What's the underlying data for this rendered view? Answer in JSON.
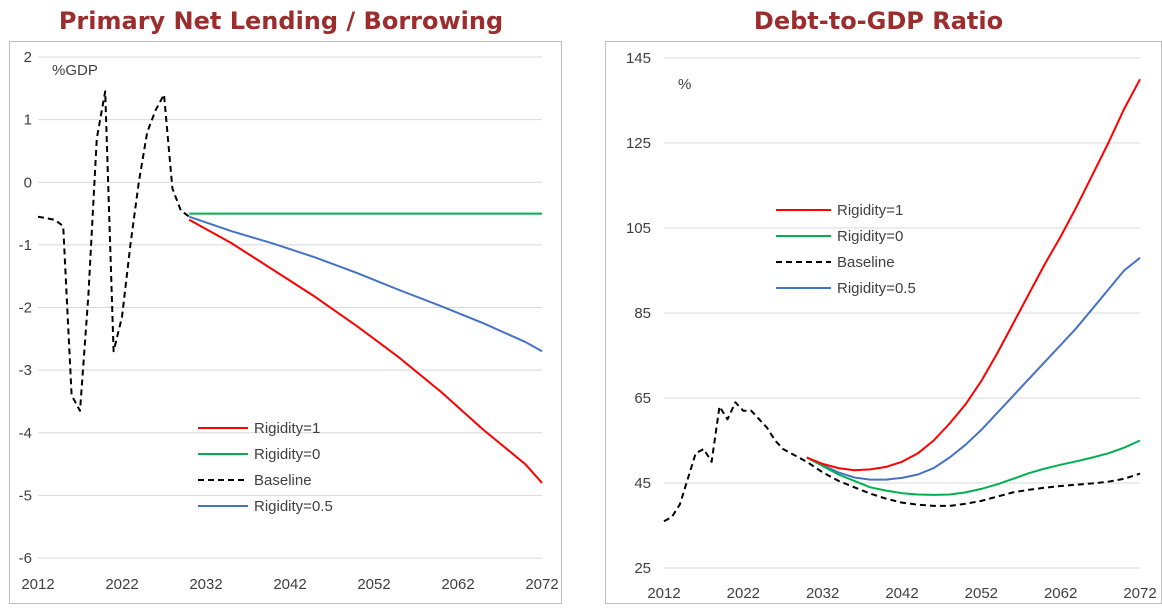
{
  "chart_data": [
    {
      "type": "line",
      "title": "Primary Net Lending / Borrowing",
      "ylabel": "%GDP",
      "xlim": [
        2012,
        2072
      ],
      "ylim": [
        -6,
        2
      ],
      "xticks": [
        "2012",
        "2022",
        "2032",
        "2042",
        "2052",
        "2062",
        "2072"
      ],
      "yticks": [
        "-6",
        "-5",
        "-4",
        "-3",
        "-2",
        "-1",
        "0",
        "1",
        "2"
      ],
      "grid": "horizontal",
      "legend_position": "bottom-center",
      "series": [
        {
          "name": "Rigidity=1",
          "color": "#ff0000",
          "dash": "solid",
          "x": [
            2030,
            2035,
            2040,
            2045,
            2050,
            2055,
            2060,
            2065,
            2070,
            2072
          ],
          "y": [
            -0.6,
            -0.97,
            -1.4,
            -1.83,
            -2.3,
            -2.8,
            -3.35,
            -3.95,
            -4.5,
            -4.8
          ]
        },
        {
          "name": "Rigidity=0",
          "color": "#00b050",
          "dash": "solid",
          "x": [
            2030,
            2072
          ],
          "y": [
            -0.5,
            -0.5
          ]
        },
        {
          "name": "Baseline",
          "color": "#000000",
          "dash": "dashed",
          "x": [
            2012,
            2014,
            2015,
            2016,
            2017,
            2018,
            2019,
            2020,
            2021,
            2022,
            2023,
            2024,
            2025,
            2026,
            2027,
            2028,
            2029,
            2030
          ],
          "y": [
            -0.55,
            -0.6,
            -0.7,
            -3.4,
            -3.65,
            -1.8,
            0.7,
            1.45,
            -2.7,
            -2.15,
            -1.0,
            0.0,
            0.8,
            1.15,
            1.4,
            -0.1,
            -0.45,
            -0.55
          ]
        },
        {
          "name": "Rigidity=0.5",
          "color": "#4472c4",
          "dash": "solid",
          "x": [
            2030,
            2035,
            2040,
            2045,
            2050,
            2055,
            2060,
            2065,
            2070,
            2072
          ],
          "y": [
            -0.55,
            -0.78,
            -0.98,
            -1.2,
            -1.45,
            -1.72,
            -1.98,
            -2.25,
            -2.55,
            -2.7
          ]
        }
      ]
    },
    {
      "type": "line",
      "title": "Debt-to-GDP Ratio",
      "ylabel": "%",
      "xlim": [
        2012,
        2072
      ],
      "ylim": [
        25,
        145
      ],
      "xticks": [
        "2012",
        "2022",
        "2032",
        "2042",
        "2052",
        "2062",
        "2072"
      ],
      "yticks": [
        "25",
        "45",
        "65",
        "85",
        "105",
        "125",
        "145"
      ],
      "grid": "horizontal",
      "legend_position": "upper-left",
      "series": [
        {
          "name": "Rigidity=1",
          "color": "#ff0000",
          "dash": "solid",
          "x": [
            2030,
            2032,
            2034,
            2036,
            2038,
            2040,
            2042,
            2044,
            2046,
            2048,
            2050,
            2052,
            2054,
            2056,
            2058,
            2060,
            2062,
            2064,
            2066,
            2068,
            2070,
            2072
          ],
          "y": [
            51,
            49.5,
            48.5,
            48,
            48.2,
            48.8,
            50,
            52,
            55,
            59,
            63.5,
            69,
            75.5,
            82.5,
            89.5,
            96.5,
            103,
            110,
            117.5,
            125,
            133,
            140
          ]
        },
        {
          "name": "Rigidity=0",
          "color": "#00b050",
          "dash": "solid",
          "x": [
            2030,
            2032,
            2034,
            2036,
            2038,
            2040,
            2042,
            2044,
            2046,
            2048,
            2050,
            2052,
            2054,
            2056,
            2058,
            2060,
            2062,
            2064,
            2066,
            2068,
            2070,
            2072
          ],
          "y": [
            51,
            49,
            47,
            45.5,
            44,
            43.2,
            42.6,
            42.3,
            42.2,
            42.3,
            42.8,
            43.6,
            44.7,
            46,
            47.3,
            48.4,
            49.3,
            50.1,
            51,
            52,
            53.3,
            55
          ]
        },
        {
          "name": "Baseline",
          "color": "#000000",
          "dash": "dashed",
          "x": [
            2012,
            2013,
            2014,
            2015,
            2016,
            2017,
            2018,
            2019,
            2020,
            2021,
            2022,
            2023,
            2024,
            2025,
            2026,
            2027,
            2028,
            2030,
            2032,
            2034,
            2036,
            2038,
            2040,
            2042,
            2044,
            2046,
            2048,
            2050,
            2052,
            2054,
            2056,
            2058,
            2060,
            2062,
            2064,
            2066,
            2068,
            2070,
            2072
          ],
          "y": [
            36,
            37,
            40,
            46,
            52,
            53,
            50,
            63,
            60,
            64,
            62,
            62,
            60,
            58,
            55,
            53,
            52,
            50,
            47.5,
            45.5,
            44,
            42.5,
            41.3,
            40.4,
            39.9,
            39.6,
            39.6,
            40.1,
            40.8,
            41.8,
            42.8,
            43.4,
            43.9,
            44.3,
            44.6,
            44.9,
            45.3,
            46,
            47.2
          ]
        },
        {
          "name": "Rigidity=0.5",
          "color": "#4472c4",
          "dash": "solid",
          "x": [
            2030,
            2032,
            2034,
            2036,
            2038,
            2040,
            2042,
            2044,
            2046,
            2048,
            2050,
            2052,
            2054,
            2056,
            2058,
            2060,
            2062,
            2064,
            2066,
            2068,
            2070,
            2072
          ],
          "y": [
            51,
            49.2,
            47.5,
            46.3,
            45.8,
            45.8,
            46.2,
            47,
            48.5,
            51,
            54,
            57.5,
            61.5,
            65.5,
            69.5,
            73.5,
            77.5,
            81.5,
            86,
            90.5,
            95,
            98
          ]
        }
      ]
    }
  ]
}
